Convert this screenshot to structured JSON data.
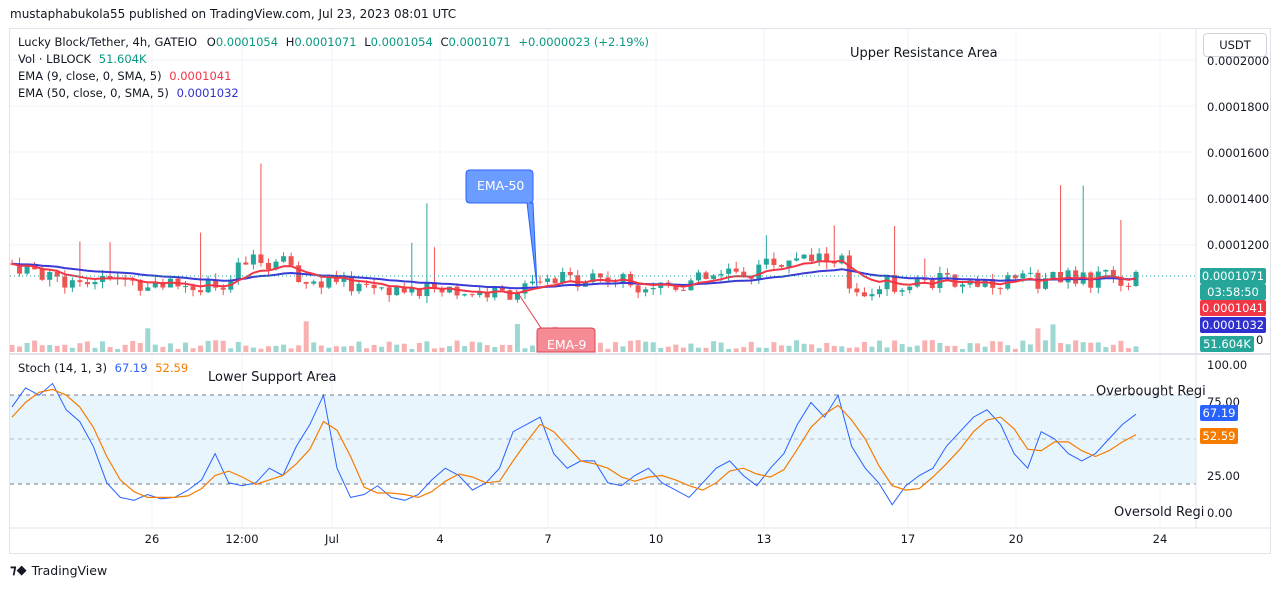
{
  "header": {
    "published_line": "mustaphabukola55 published on TradingView.com, Jul 23, 2023 08:01 UTC"
  },
  "legend": {
    "symbol": "Lucky Block/Tether, 4h, GATEIO",
    "o_label": "O",
    "o_value": "0.0001054",
    "h_label": "H",
    "h_value": "0.0001071",
    "l_label": "L",
    "l_value": "0.0001054",
    "c_label": "C",
    "c_value": "0.0001071",
    "change": "+0.0000023 (+2.19%)",
    "vol_label": "Vol · LBLOCK",
    "vol_value": "51.604K",
    "ema9_label": "EMA (9, close, 0, SMA, 5)",
    "ema9_value": "0.0001041",
    "ema50_label": "EMA (50, close, 0, SMA, 5)",
    "ema50_value": "0.0001032"
  },
  "currency_button": "USDT",
  "price_axis": [
    "0.0002000",
    "0.0001800",
    "0.0001600",
    "0.0001400",
    "0.0001200"
  ],
  "price_tags": {
    "last": "0.0001071",
    "countdown": "03:58:50",
    "ema9": "0.0001041",
    "ema50": "0.0001032",
    "volume": "51.604K",
    "zero": "0"
  },
  "annotations": {
    "upper": "Upper Resistance Area",
    "lower": "Lower Support Area",
    "ema50_callout": "EMA-50",
    "ema9_callout": "EMA-9",
    "overbought": "Overbought Regi",
    "oversold": "Oversold Regi"
  },
  "stoch": {
    "label": "Stoch (14, 1, 3)",
    "k_value": "67.19",
    "d_value": "52.59",
    "axis": [
      "100.00",
      "75.00",
      "25.00",
      "0.00"
    ]
  },
  "time_axis": [
    "26",
    "12:00",
    "Jul",
    "4",
    "7",
    "10",
    "13",
    "17",
    "20",
    "24"
  ],
  "footer": {
    "brand": "TradingView"
  },
  "colors": {
    "up": "#26a69a",
    "down": "#ef5350",
    "ema9": "#f23645",
    "ema50": "#3a3ad6",
    "stoch_k": "#2962ff",
    "stoch_d": "#f57c00",
    "band": "#e3f2fd"
  },
  "chart_data": {
    "type": "line",
    "series": [
      {
        "name": "EMA (9, close, 0, SMA, 5)",
        "last": 0.0001041
      },
      {
        "name": "EMA (50, close, 0, SMA, 5)",
        "last": 0.0001032
      }
    ],
    "price_ylim": [
      8.5e-05,
      0.0002
    ],
    "stoch": {
      "k": [
        72,
        85,
        80,
        88,
        70,
        62,
        45,
        20,
        10,
        8,
        12,
        9,
        10,
        15,
        22,
        40,
        20,
        18,
        20,
        30,
        25,
        45,
        60,
        80,
        30,
        10,
        12,
        18,
        10,
        8,
        12,
        22,
        30,
        25,
        15,
        20,
        30,
        55,
        60,
        65,
        40,
        30,
        35,
        35,
        20,
        18,
        25,
        30,
        20,
        15,
        10,
        20,
        30,
        35,
        25,
        18,
        30,
        40,
        60,
        75,
        65,
        80,
        45,
        30,
        20,
        5,
        18,
        25,
        30,
        45,
        55,
        65,
        70,
        60,
        40,
        30,
        55,
        50,
        40,
        35,
        40,
        50,
        60,
        67
      ],
      "d": [
        65,
        75,
        82,
        84,
        80,
        72,
        58,
        38,
        22,
        14,
        10,
        10,
        10,
        11,
        16,
        25,
        28,
        24,
        19,
        22,
        25,
        33,
        43,
        62,
        56,
        38,
        17,
        13,
        13,
        12,
        10,
        14,
        21,
        26,
        24,
        20,
        21,
        35,
        48,
        60,
        55,
        45,
        35,
        33,
        30,
        24,
        21,
        24,
        25,
        22,
        18,
        15,
        20,
        28,
        30,
        26,
        24,
        29,
        43,
        58,
        67,
        73,
        63,
        50,
        32,
        18,
        15,
        16,
        24,
        33,
        43,
        55,
        63,
        65,
        57,
        43,
        42,
        48,
        48,
        42,
        38,
        42,
        48,
        53
      ],
      "ylim": [
        0,
        100
      ],
      "overbought": 80,
      "oversold": 20
    }
  }
}
